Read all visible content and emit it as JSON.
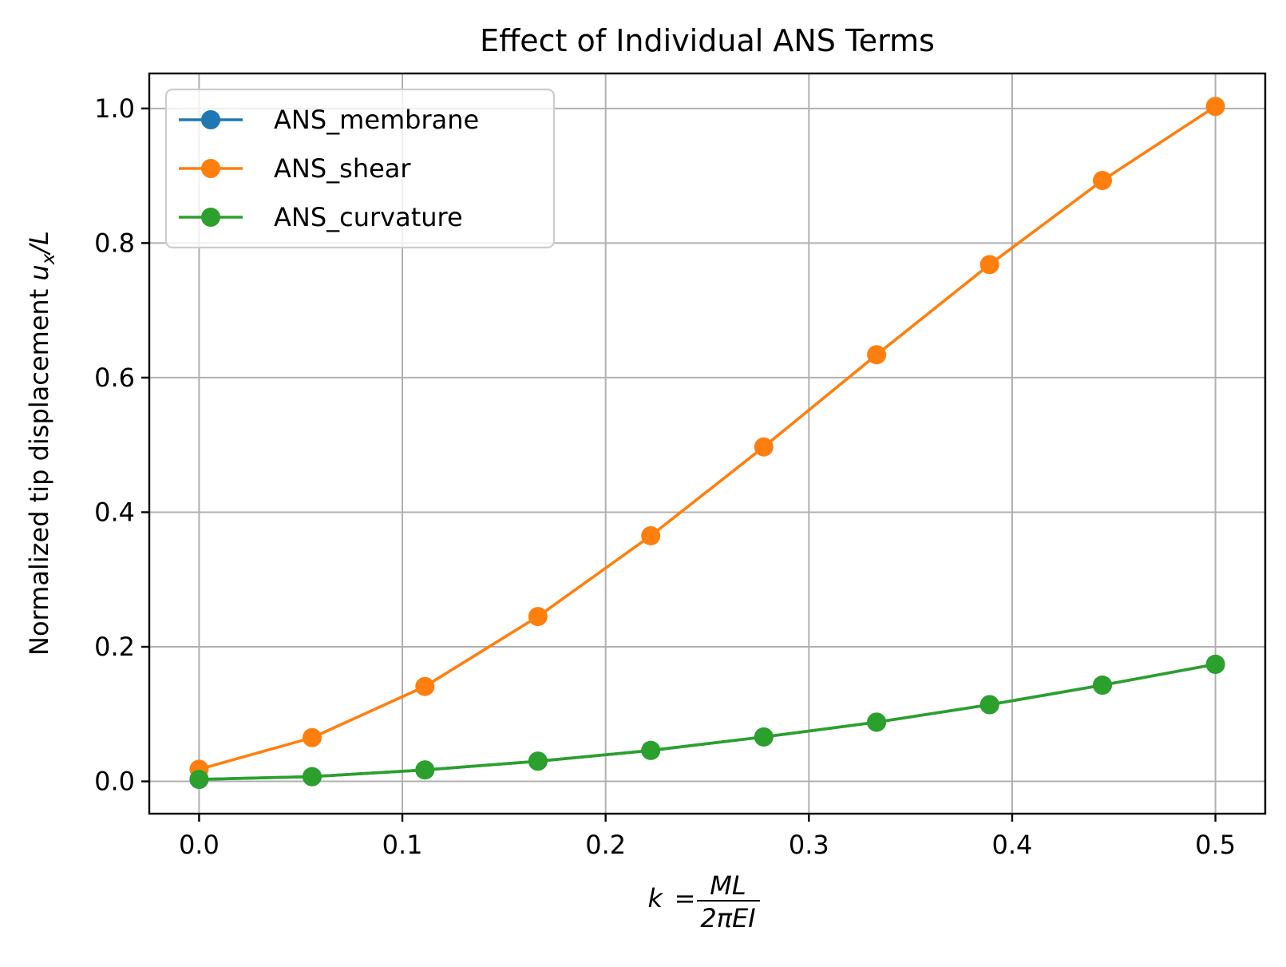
{
  "chart_data": {
    "type": "line",
    "title": "Effect of Individual ANS Terms",
    "xlabel": "k = ML / 2πEI",
    "ylabel": "Normalized tip displacement u_x/L",
    "xlim": [
      -0.0245,
      0.5245
    ],
    "ylim": [
      -0.048,
      1.052
    ],
    "x_ticks": [
      "0.0",
      "0.1",
      "0.2",
      "0.3",
      "0.4",
      "0.5"
    ],
    "y_ticks": [
      "0.0",
      "0.2",
      "0.4",
      "0.6",
      "0.8",
      "1.0"
    ],
    "grid": true,
    "legend_position": "upper left",
    "x": [
      0.0,
      0.0556,
      0.1111,
      0.1667,
      0.2222,
      0.2778,
      0.3333,
      0.3889,
      0.4444,
      0.5
    ],
    "series": [
      {
        "name": "ANS_membrane",
        "color": "#1f77b4",
        "marker": "circle",
        "values": [
          0.003,
          0.007,
          0.017,
          0.03,
          0.046,
          0.066,
          0.088,
          0.114,
          0.143,
          0.174
        ]
      },
      {
        "name": "ANS_shear",
        "color": "#ff7f0e",
        "marker": "circle",
        "values": [
          0.018,
          0.065,
          0.141,
          0.245,
          0.365,
          0.497,
          0.634,
          0.768,
          0.893,
          1.003
        ]
      },
      {
        "name": "ANS_curvature",
        "color": "#2ca02c",
        "marker": "circle",
        "values": [
          0.003,
          0.007,
          0.017,
          0.03,
          0.046,
          0.066,
          0.088,
          0.114,
          0.143,
          0.174
        ]
      }
    ]
  }
}
